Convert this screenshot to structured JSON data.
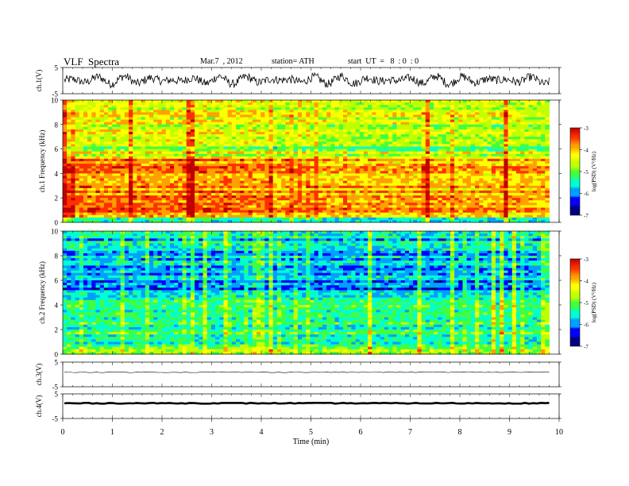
{
  "header": {
    "title": "VLF  Spectra",
    "date": "Mar.7  , 2012",
    "station": "station= ATH",
    "start": "start  UT  =   8  : 0  : 0"
  },
  "colorbar": {
    "label": "log(PSD) (V²/Hz)",
    "ticks": [
      "-3",
      "-4",
      "-5",
      "-6",
      "-7"
    ],
    "colors": [
      "#000080",
      "#0000ff",
      "#00a0ff",
      "#00ffd0",
      "#40ff40",
      "#c0ff00",
      "#ffff00",
      "#ffa000",
      "#ff3000",
      "#c00000"
    ]
  },
  "chart_data": [
    {
      "type": "line",
      "name": "ch1",
      "ylabel": "ch.1(V)",
      "ylim": [
        -5,
        5
      ],
      "y_ticks": [
        "5",
        "-5"
      ],
      "xlim": [
        0,
        10
      ]
    },
    {
      "type": "heatmap",
      "name": "ch1-spectrogram",
      "ylabel": "ch.1  Frequency  (kHz)",
      "ylim": [
        0,
        10
      ],
      "y_ticks": [
        "0",
        "2",
        "4",
        "6",
        "8",
        "10"
      ],
      "xlim": [
        0,
        10
      ],
      "data_extent_min": 9.8,
      "z_range": [
        -7,
        -3
      ]
    },
    {
      "type": "heatmap",
      "name": "ch2-spectrogram",
      "ylabel": "ch.2  Frequency  (kHz)",
      "ylim": [
        0,
        10
      ],
      "y_ticks": [
        "0",
        "2",
        "4",
        "6",
        "8",
        "10"
      ],
      "xlim": [
        0,
        10
      ],
      "data_extent_min": 9.8,
      "z_range": [
        -7,
        -3
      ]
    },
    {
      "type": "line",
      "name": "ch3",
      "ylabel": "ch.3(V)",
      "ylim": [
        -5,
        5
      ],
      "y_ticks": [
        "5",
        "-5"
      ],
      "xlim": [
        0,
        10
      ]
    },
    {
      "type": "line",
      "name": "ch4",
      "ylabel": "ch.4(V)",
      "ylim": [
        -5,
        5
      ],
      "y_ticks": [
        "5",
        "-5"
      ],
      "xlim": [
        0,
        10
      ]
    }
  ],
  "x_axis": {
    "label": "Time  (min)",
    "ticks": [
      "0",
      "1",
      "2",
      "3",
      "4",
      "5",
      "6",
      "7",
      "8",
      "9",
      "10"
    ]
  }
}
